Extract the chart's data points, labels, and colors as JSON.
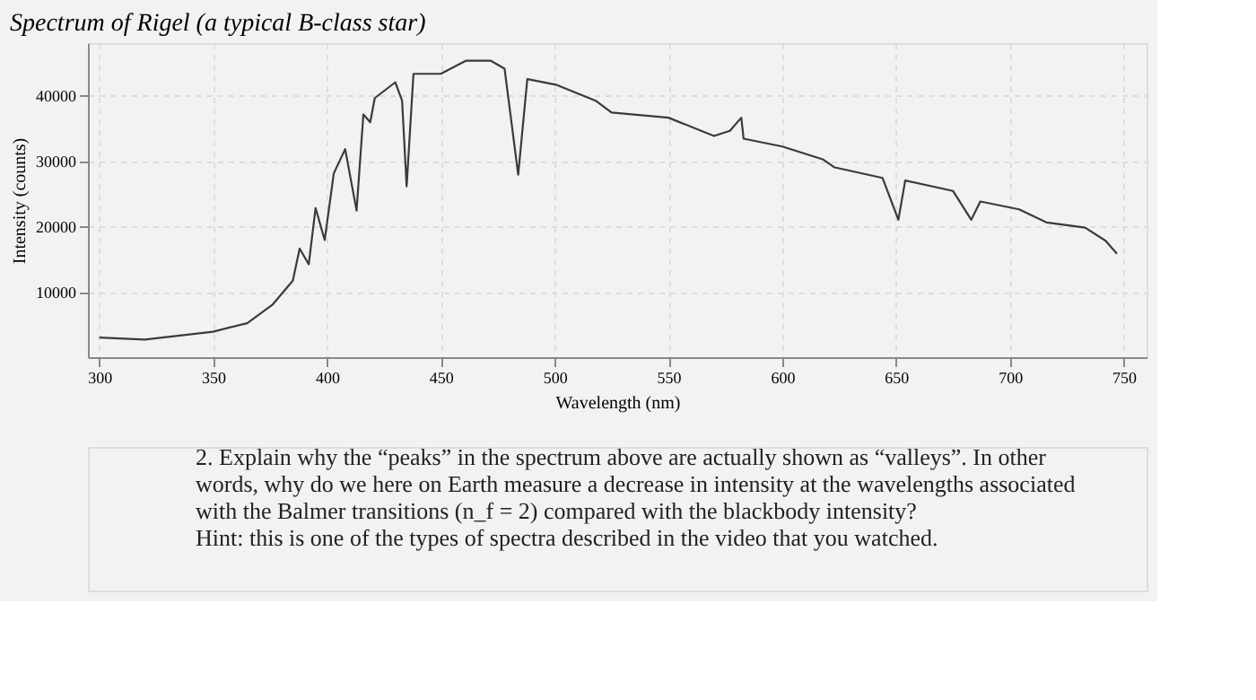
{
  "chart_data": {
    "type": "line",
    "title": "Spectrum of Rigel (a typical B-class star)",
    "xlabel": "Wavelength (nm)",
    "ylabel": "Intensity (counts)",
    "x": [
      300,
      320,
      350,
      365,
      376,
      385,
      388,
      392,
      395,
      399,
      403,
      408,
      413,
      416,
      419,
      421,
      430,
      433,
      435,
      438,
      450,
      461,
      472,
      478,
      484,
      488,
      501,
      518,
      525,
      550,
      570,
      577,
      582,
      583,
      600,
      618,
      623,
      644,
      651,
      654,
      675,
      683,
      687,
      704,
      716,
      733,
      742,
      747
    ],
    "series": [
      {
        "color": "#3a3a3a",
        "values": [
          3000,
          2700,
          3900,
          5200,
          8000,
          11700,
          16600,
          14200,
          22800,
          17900,
          28100,
          31800,
          22400,
          37100,
          35900,
          39600,
          42000,
          39200,
          26100,
          43300,
          43300,
          45300,
          45300,
          44100,
          27900,
          42500,
          41600,
          39200,
          37400,
          36600,
          33800,
          34600,
          36600,
          33400,
          32200,
          30200,
          29000,
          27400,
          21000,
          27000,
          25400,
          21000,
          23800,
          22600,
          20600,
          19800,
          17800,
          15800
        ]
      }
    ],
    "xlim": [
      295,
      760
    ],
    "xticks": [
      300,
      350,
      400,
      450,
      500,
      550,
      600,
      650,
      700,
      750
    ],
    "ylim": [
      0,
      48000
    ],
    "yticks": [
      10000,
      20000,
      30000,
      40000
    ],
    "grid": true,
    "marker": "none",
    "line_style": "solid",
    "annotations": [
      "2. Explain why the “peaks” in the spectrum above are actually shown as “valleys”. In other words, why do we here on Earth measure a decrease in intensity at the wavelengths associated with the Balmer transitions (n_f = 2) compared with the blackbody intensity?",
      "Hint: this is one of the types of spectra described in the video that you watched."
    ]
  }
}
